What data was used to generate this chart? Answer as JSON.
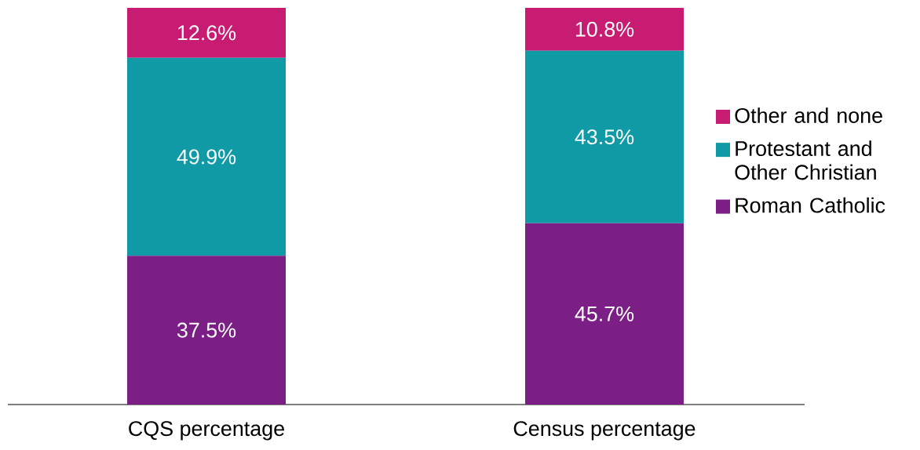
{
  "chart_data": {
    "type": "bar",
    "stacked": true,
    "categories": [
      "CQS percentage",
      "Census percentage"
    ],
    "series": [
      {
        "name": "Roman Catholic",
        "color": "#7b1f86",
        "values": [
          37.5,
          45.7
        ],
        "value_labels": [
          "37.5%",
          "45.7%"
        ]
      },
      {
        "name": "Protestant and Other Christian",
        "color": "#0f9aa5",
        "values": [
          49.9,
          43.5
        ],
        "value_labels": [
          "49.9%",
          "43.5%"
        ]
      },
      {
        "name": "Other and none",
        "color": "#c81c73",
        "values": [
          12.6,
          10.8
        ],
        "value_labels": [
          "12.6%",
          "10.8%"
        ]
      }
    ],
    "legend": "right"
  }
}
